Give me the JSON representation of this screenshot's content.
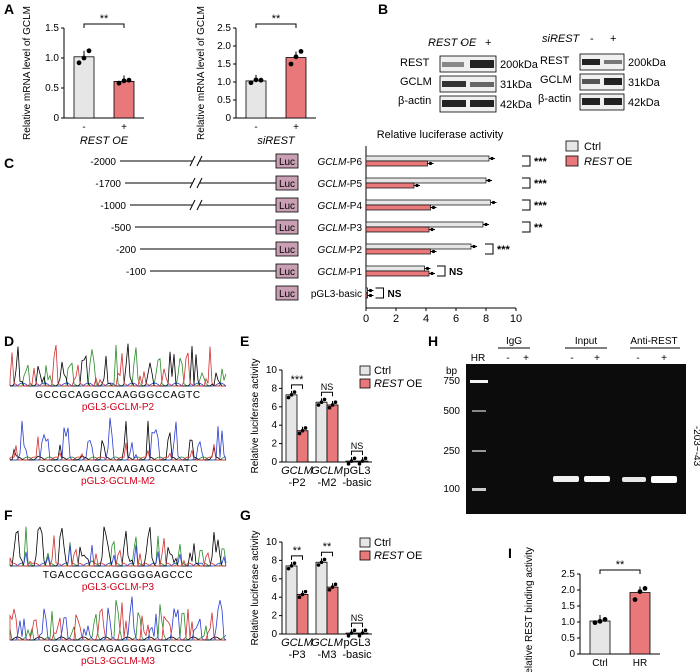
{
  "colors": {
    "ctrl": "#e6e6e6",
    "oe": "#e8787a",
    "luc": "#c9a0b3",
    "gel_bg": "#0c0c0c",
    "band": "#ffffff"
  },
  "panels": {
    "A": {
      "letter": "A"
    },
    "B": {
      "letter": "B",
      "left_header": "REST OE",
      "right_header": "siREST",
      "lanes": [
        "-",
        "+"
      ],
      "rows": [
        {
          "name": "REST",
          "size": "200kDa"
        },
        {
          "name": "GCLM",
          "size": "31kDa"
        },
        {
          "name": "β-actin",
          "size": "42kDa"
        }
      ]
    },
    "C": {
      "letter": "C",
      "title": "Relative luciferase activity",
      "constructs": [
        {
          "pos": "-2000",
          "name": "GCLM-P6",
          "break": true
        },
        {
          "pos": "-1700",
          "name": "GCLM-P5",
          "break": true
        },
        {
          "pos": "-1000",
          "name": "GCLM-P4",
          "break": true
        },
        {
          "pos": "-500",
          "name": "GCLM-P3",
          "break": false
        },
        {
          "pos": "-200",
          "name": "GCLM-P2",
          "break": false
        },
        {
          "pos": "-100",
          "name": "GCLM-P1",
          "break": false
        },
        {
          "pos": "",
          "name": "pGL3-basic",
          "break": false
        }
      ],
      "luc_label": "Luc"
    },
    "D": {
      "letter": "D",
      "seq1": "GCCGCAGGCCAAGGGCCAGTC",
      "label1": "pGL3-GCLM-P2",
      "seq2": "GCCGCAAGCAAAGAGCCAATC",
      "label2": "pGL3-GCLM-M2"
    },
    "E": {
      "letter": "E"
    },
    "F": {
      "letter": "F",
      "seq1": "TGACCGCCAGGGGGAGCCC",
      "label1": "pGL3-GCLM-P3",
      "seq2": "CGACCGCAGAGGGAGTCCC",
      "label2": "pGL3-GCLM-M3"
    },
    "G": {
      "letter": "G"
    },
    "H": {
      "letter": "H",
      "bp_label": "bp",
      "ladder_label": "HR",
      "groups": [
        "IgG",
        "Input",
        "Anti-REST"
      ],
      "lanes": [
        "-",
        "+",
        "-",
        "+",
        "-",
        "+"
      ],
      "markers": [
        "750",
        "500",
        "250",
        "100"
      ],
      "side_label": "-203~-43"
    },
    "I": {
      "letter": "I"
    }
  },
  "chart_data": [
    {
      "id": "A1",
      "type": "bar",
      "categories": [
        "-",
        "+"
      ],
      "values": [
        1.02,
        0.61
      ],
      "points": [
        [
          0.92,
          1.0,
          1.12
        ],
        [
          0.58,
          0.62,
          0.63
        ]
      ],
      "ylabel": "Relative mRNA level of GCLM",
      "xlabel": "REST OE",
      "ylim": [
        0,
        1.5
      ],
      "yticks": [
        "0",
        "0.5",
        "1.0",
        "1.5"
      ],
      "sig": "**"
    },
    {
      "id": "A2",
      "type": "bar",
      "categories": [
        "-",
        "+"
      ],
      "values": [
        1.03,
        1.68
      ],
      "points": [
        [
          0.98,
          1.06,
          1.05
        ],
        [
          1.5,
          1.7,
          1.85
        ]
      ],
      "ylabel": "Relative mRNA level of GCLM",
      "xlabel": "siREST",
      "ylim": [
        0,
        2.5
      ],
      "yticks": [
        "0",
        "0.5",
        "1.0",
        "1.5",
        "2.0",
        "2.5"
      ],
      "sig": "**"
    },
    {
      "id": "C",
      "type": "bar",
      "orientation": "horizontal",
      "categories": [
        "GCLM-P6",
        "GCLM-P5",
        "GCLM-P4",
        "GCLM-P3",
        "GCLM-P2",
        "GCLM-P1",
        "pGL3-basic"
      ],
      "series": [
        {
          "name": "Ctrl",
          "values": [
            8.2,
            8.0,
            8.3,
            7.8,
            7.0,
            3.9,
            0.1
          ]
        },
        {
          "name": "REST OE",
          "values": [
            4.1,
            3.2,
            4.3,
            4.2,
            4.3,
            4.2,
            0.1
          ]
        }
      ],
      "xlim": [
        0,
        10
      ],
      "xticks": [
        "0",
        "2",
        "4",
        "6",
        "8",
        "10"
      ],
      "sig": [
        "***",
        "***",
        "***",
        "**",
        "***",
        "NS",
        "NS"
      ]
    },
    {
      "id": "E",
      "type": "bar",
      "categories": [
        "GCLM -P2",
        "GCLM -M2",
        "pGL3 -basic"
      ],
      "series": [
        {
          "name": "Ctrl",
          "values": [
            7.3,
            6.5,
            0.1
          ]
        },
        {
          "name": "REST OE",
          "values": [
            3.4,
            6.2,
            0.1
          ]
        }
      ],
      "ylabel": "Relative luciferase activity",
      "ylim": [
        0,
        10
      ],
      "yticks": [
        "0",
        "2",
        "4",
        "6",
        "8",
        "10"
      ],
      "sig": [
        "***",
        "NS",
        "NS"
      ]
    },
    {
      "id": "G",
      "type": "bar",
      "categories": [
        "GCLM -P3",
        "GCLM -M3",
        "pGL3 -basic"
      ],
      "series": [
        {
          "name": "Ctrl",
          "values": [
            7.4,
            7.8,
            0.1
          ]
        },
        {
          "name": "REST OE",
          "values": [
            4.3,
            5.1,
            0.1
          ]
        }
      ],
      "ylabel": "Relative luciferase activity",
      "ylim": [
        0,
        10
      ],
      "yticks": [
        "0",
        "2",
        "4",
        "6",
        "8",
        "10"
      ],
      "sig": [
        "**",
        "**",
        "NS"
      ]
    },
    {
      "id": "I",
      "type": "bar",
      "categories": [
        "Ctrl",
        "HR"
      ],
      "values": [
        1.03,
        1.92
      ],
      "points": [
        [
          0.98,
          1.02,
          1.08
        ],
        [
          1.7,
          1.95,
          2.05
        ]
      ],
      "ylabel": "Relative REST binding activity",
      "ylim": [
        0,
        2.5
      ],
      "yticks": [
        "0",
        "0.5",
        "1.0",
        "1.5",
        "2.0",
        "2.5"
      ],
      "sig": "**"
    }
  ],
  "legend": {
    "ctrl": "Ctrl",
    "oe": "REST OE"
  }
}
